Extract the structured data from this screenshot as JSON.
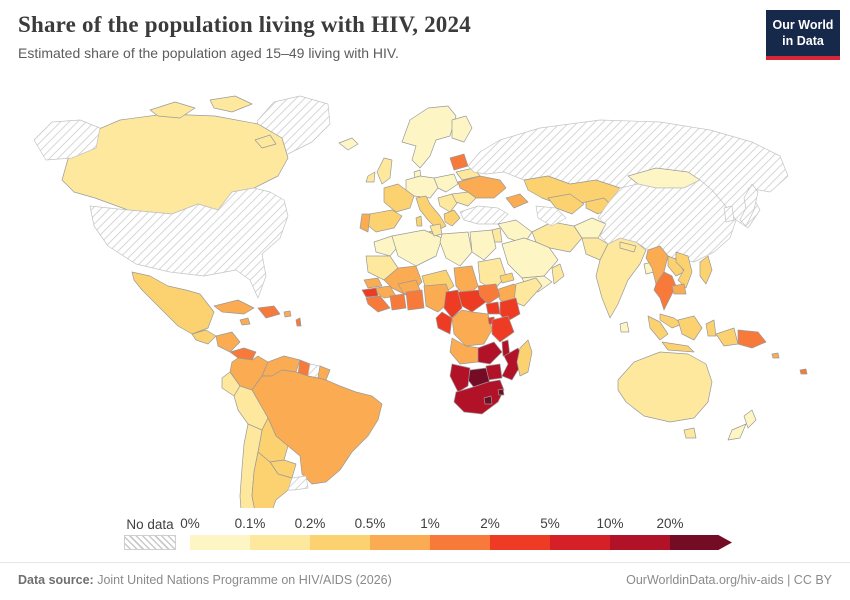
{
  "header": {
    "title": "Share of the population living with HIV, 2024",
    "subtitle": "Estimated share of the population aged 15–49 living with HIV."
  },
  "logo": {
    "line1": "Our World",
    "line2": "in Data",
    "bg_color": "#16294a",
    "accent_color": "#d7263a"
  },
  "legend": {
    "no_data_label": "No data",
    "tick_labels": [
      "0%",
      "0.1%",
      "0.2%",
      "0.5%",
      "1%",
      "2%",
      "5%",
      "10%",
      "20%"
    ],
    "bin_colors": [
      "#fdf6c4",
      "#fde89e",
      "#fcd271",
      "#fbab51",
      "#f87a3b",
      "#ee3c24",
      "#d52027",
      "#b11228",
      "#740c26"
    ]
  },
  "map": {
    "border_color": "#9a9a9a",
    "no_data_border": "#c4c4c4",
    "ocean_color": "#ffffff",
    "regions": {
      "greenland": "no-data",
      "alaska": "no-data",
      "usa": "no-data",
      "russia": "no-data",
      "turkey": "no-data",
      "turkmenistan": "no-data",
      "china": "no-data",
      "korea": "no-data",
      "japan": "no-data",
      "suriname": "no-data",
      "uruguay": "no-data",
      "canada": 1,
      "iceland": 0,
      "mexico": 2,
      "guatemala": 2,
      "honduras-nicaragua": 3,
      "panama": 4,
      "cuba": 3,
      "jamaica": 3,
      "puerto-rico": 3,
      "hispaniola": 4,
      "lesser-antilles": 4,
      "colombia": 3,
      "venezuela": 3,
      "guyana": 4,
      "french-guiana": 3,
      "ecuador": 1,
      "peru": 1,
      "brazil": 3,
      "bolivia": 2,
      "paraguay": 2,
      "chile": 1,
      "argentina": 2,
      "uk": 1,
      "ireland": 1,
      "scandinavia": 0,
      "finland": 0,
      "denmark": 0,
      "germany-central": 0,
      "poland": 0,
      "france": 2,
      "spain": 2,
      "portugal": 3,
      "italy": 2,
      "sicily": 2,
      "sardinia": 2,
      "balkans": 1,
      "greece": 2,
      "romania": 1,
      "ukraine": 3,
      "belarus": 1,
      "baltics": 4,
      "caucasus": 3,
      "morocco": 0,
      "algeria": 0,
      "tunisia": 1,
      "libya": 0,
      "egypt": 0,
      "mauritania": 1,
      "mali": 3,
      "niger": 2,
      "chad": 3,
      "sudan": 1,
      "eritrea": 2,
      "ethiopia": 3,
      "somalia": 1,
      "senegal": 3,
      "guinea-bissau": 5,
      "guinea": 3,
      "sierra-leone-liberia": 4,
      "cote-divoire": 4,
      "ghana-togo-benin": 4,
      "burkina-faso": 3,
      "nigeria": 3,
      "cameroon": 5,
      "central-african-republic": 5,
      "south-sudan": 4,
      "gabon-congo": 5,
      "drc": 3,
      "uganda": 5,
      "kenya": 5,
      "rwanda-burundi": 5,
      "tanzania": 5,
      "angola": 3,
      "zambia": 7,
      "malawi": 7,
      "mozambique": 7,
      "zimbabwe": 7,
      "botswana": 8,
      "namibia": 7,
      "south-africa": 7,
      "lesotho": 8,
      "eswatini": 8,
      "madagascar": 2,
      "levant": 0,
      "jordan-israel": 1,
      "saudi-arabia": 0,
      "yemen": 0,
      "oman": 1,
      "iran": 1,
      "kazakhstan": 2,
      "uzbekistan": 2,
      "kyrgyz-tajik": 2,
      "afghanistan": 0,
      "pakistan": 1,
      "india": 1,
      "nepal": 1,
      "bangladesh": 0,
      "sri-lanka": 0,
      "mongolia": 0,
      "myanmar": 3,
      "thailand": 4,
      "laos": 2,
      "vietnam": 2,
      "cambodia": 3,
      "malaysia": 2,
      "sumatra": 2,
      "java": 2,
      "borneo": 2,
      "sulawesi": 2,
      "philippines": 2,
      "papua-west": 2,
      "papua-new-guinea": 4,
      "solomon-islands": 3,
      "fiji": 4,
      "australia": 1,
      "tasmania": 1,
      "new-zealand-north": 0,
      "new-zealand-south": 0
    }
  },
  "footer": {
    "source_label": "Data source:",
    "source_text": " Joint United Nations Programme on HIV/AIDS (2026)",
    "credit": "OurWorldinData.org/hiv-aids | CC BY"
  }
}
